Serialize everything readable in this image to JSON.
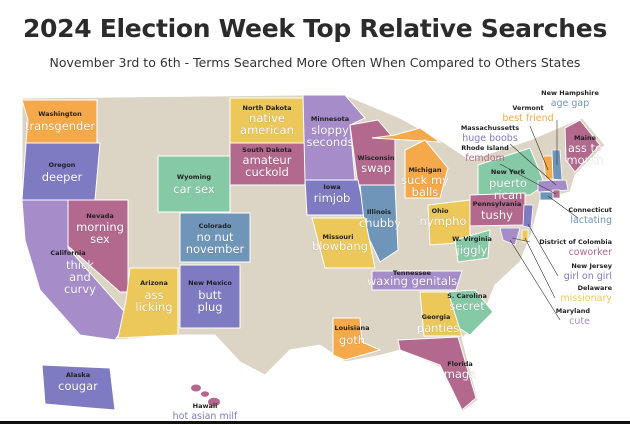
{
  "title": "2024 Election Week Top Relative Searches",
  "subtitle": "November 3rd to 6th - Terms Searched More Often When Compared to Others States",
  "colors": {
    "base": "#dcd4c4",
    "orange": "#f5a94a",
    "lavender": "#a68cc9",
    "indigo": "#7e7bc2",
    "rose": "#b3698e",
    "green": "#86c9a7",
    "blue": "#6f96b8",
    "yellow": "#ecc85a"
  },
  "states": [
    {
      "name": "Washington",
      "term": "transgender",
      "color": "#f5a94a"
    },
    {
      "name": "Oregon",
      "term": "deeper",
      "color": "#7e7bc2"
    },
    {
      "name": "California",
      "term": "thick and curvy",
      "color": "#a68cc9"
    },
    {
      "name": "Nevada",
      "term": "morning sex",
      "color": "#b3698e"
    },
    {
      "name": "Wyoming",
      "term": "car sex",
      "color": "#86c9a7"
    },
    {
      "name": "Colorado",
      "term": "no nut november",
      "color": "#6f96b8"
    },
    {
      "name": "Arizona",
      "term": "ass licking",
      "color": "#ecc85a"
    },
    {
      "name": "New Mexico",
      "term": "butt plug",
      "color": "#7e7bc2"
    },
    {
      "name": "North Dakota",
      "term": "native american",
      "color": "#ecc85a"
    },
    {
      "name": "South Dakota",
      "term": "amateur cuckold",
      "color": "#b3698e"
    },
    {
      "name": "Minnesota",
      "term": "sloppy seconds",
      "color": "#a68cc9"
    },
    {
      "name": "Wisconsin",
      "term": "swap",
      "color": "#b3698e"
    },
    {
      "name": "Michigan",
      "term": "suck my balls",
      "color": "#f5a94a"
    },
    {
      "name": "Iowa",
      "term": "rimjob",
      "color": "#7e7bc2"
    },
    {
      "name": "Illinois",
      "term": "chubby",
      "color": "#6f96b8"
    },
    {
      "name": "Missouri",
      "term": "blowbang",
      "color": "#ecc85a"
    },
    {
      "name": "Ohio",
      "term": "nympho",
      "color": "#ecc85a"
    },
    {
      "name": "New York",
      "term": "puerto rican",
      "color": "#86c9a7"
    },
    {
      "name": "Pennsylvania",
      "term": "tushy",
      "color": "#b3698e"
    },
    {
      "name": "W. Virginia",
      "term": "jiggly",
      "color": "#86c9a7"
    },
    {
      "name": "Tennessee",
      "term": "waxing genitals",
      "color": "#a68cc9"
    },
    {
      "name": "S. Carolina",
      "term": "secret",
      "color": "#86c9a7"
    },
    {
      "name": "Georgia",
      "term": "panties",
      "color": "#ecc85a"
    },
    {
      "name": "Louisiana",
      "term": "goth",
      "color": "#f5a94a"
    },
    {
      "name": "Florida",
      "term": "maga",
      "color": "#b3698e"
    },
    {
      "name": "Maine",
      "term": "ass to mouth",
      "color": "#b3698e"
    },
    {
      "name": "Alaska",
      "term": "cougar",
      "color": "#7e7bc2"
    }
  ],
  "callouts": [
    {
      "name": "New Hampshire",
      "term": "age gap",
      "color": "#6f96b8"
    },
    {
      "name": "Vermont",
      "term": "best friend",
      "color": "#f5a94a"
    },
    {
      "name": "Massachussetts",
      "term": "huge boobs",
      "color": "#7e7bc2"
    },
    {
      "name": "Rhode Island",
      "term": "femdom",
      "color": "#b3698e"
    },
    {
      "name": "Connecticut",
      "term": "lactating",
      "color": "#6f96b8"
    },
    {
      "name": "District of Colombia",
      "term": "coworker",
      "color": "#b3698e"
    },
    {
      "name": "New Jersey",
      "term": "girl on girl",
      "color": "#7e7bc2"
    },
    {
      "name": "Delaware",
      "term": "missionary",
      "color": "#ecc85a"
    },
    {
      "name": "Maryland",
      "term": "cute",
      "color": "#a68cc9"
    },
    {
      "name": "Hawaii",
      "term": "hot asian milf",
      "color": "#7e7bc2"
    }
  ]
}
